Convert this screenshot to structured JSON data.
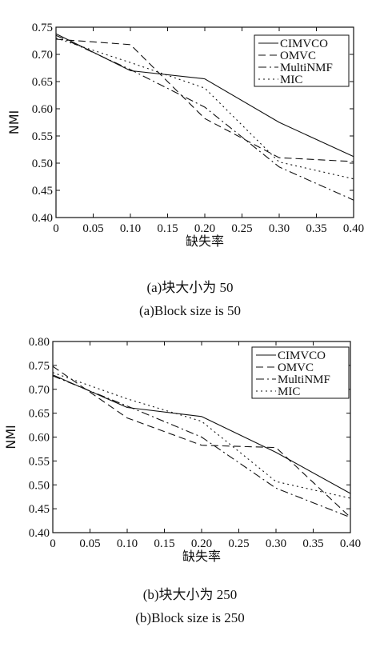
{
  "chart_data": [
    {
      "type": "line",
      "xlabel": "缺失率",
      "ylabel": "NMI",
      "xlim": [
        0,
        0.4
      ],
      "ylim": [
        0.4,
        0.75
      ],
      "xticks": [
        "0",
        "0.05",
        "0.10",
        "0.15",
        "0.20",
        "0.25",
        "0.30",
        "0.35",
        "0.40"
      ],
      "yticks": [
        "0.40",
        "0.45",
        "0.50",
        "0.55",
        "0.60",
        "0.65",
        "0.70",
        "0.75"
      ],
      "legend_position": "top-right",
      "grid": false,
      "x": [
        0,
        0.1,
        0.2,
        0.3,
        0.4
      ],
      "series": [
        {
          "name": "CIMVCO",
          "style": "solid",
          "values": [
            0.738,
            0.67,
            0.655,
            0.575,
            0.512
          ]
        },
        {
          "name": "OMVC",
          "style": "dashed",
          "values": [
            0.728,
            0.718,
            0.582,
            0.51,
            0.503
          ]
        },
        {
          "name": "MultiNMF",
          "style": "dashdot",
          "values": [
            0.735,
            0.672,
            0.603,
            0.493,
            0.432
          ]
        },
        {
          "name": "MIC",
          "style": "dotted",
          "values": [
            0.73,
            0.685,
            0.638,
            0.502,
            0.471
          ]
        }
      ],
      "caption_cn": "(a)块大小为 50",
      "caption_en": "(a)Block size is 50"
    },
    {
      "type": "line",
      "xlabel": "缺失率",
      "ylabel": "NMI",
      "xlim": [
        0,
        0.4
      ],
      "ylim": [
        0.4,
        0.8
      ],
      "xticks": [
        "0",
        "0.05",
        "0.10",
        "0.15",
        "0.20",
        "0.25",
        "0.30",
        "0.35",
        "0.40"
      ],
      "yticks": [
        "0.40",
        "0.45",
        "0.50",
        "0.55",
        "0.60",
        "0.65",
        "0.70",
        "0.75",
        "0.80"
      ],
      "legend_position": "top-right",
      "grid": false,
      "x": [
        0,
        0.1,
        0.2,
        0.3,
        0.4
      ],
      "series": [
        {
          "name": "CIMVCO",
          "style": "solid",
          "values": [
            0.73,
            0.662,
            0.643,
            0.568,
            0.482
          ]
        },
        {
          "name": "OMVC",
          "style": "dashed",
          "values": [
            0.748,
            0.64,
            0.583,
            0.578,
            0.432
          ]
        },
        {
          "name": "MultiNMF",
          "style": "dashdot",
          "values": [
            0.728,
            0.665,
            0.6,
            0.493,
            0.432
          ]
        },
        {
          "name": "MIC",
          "style": "dotted",
          "values": [
            0.735,
            0.68,
            0.633,
            0.507,
            0.472
          ]
        }
      ],
      "caption_cn": "(b)块大小为 250",
      "caption_en": "(b)Block size is 250"
    }
  ]
}
